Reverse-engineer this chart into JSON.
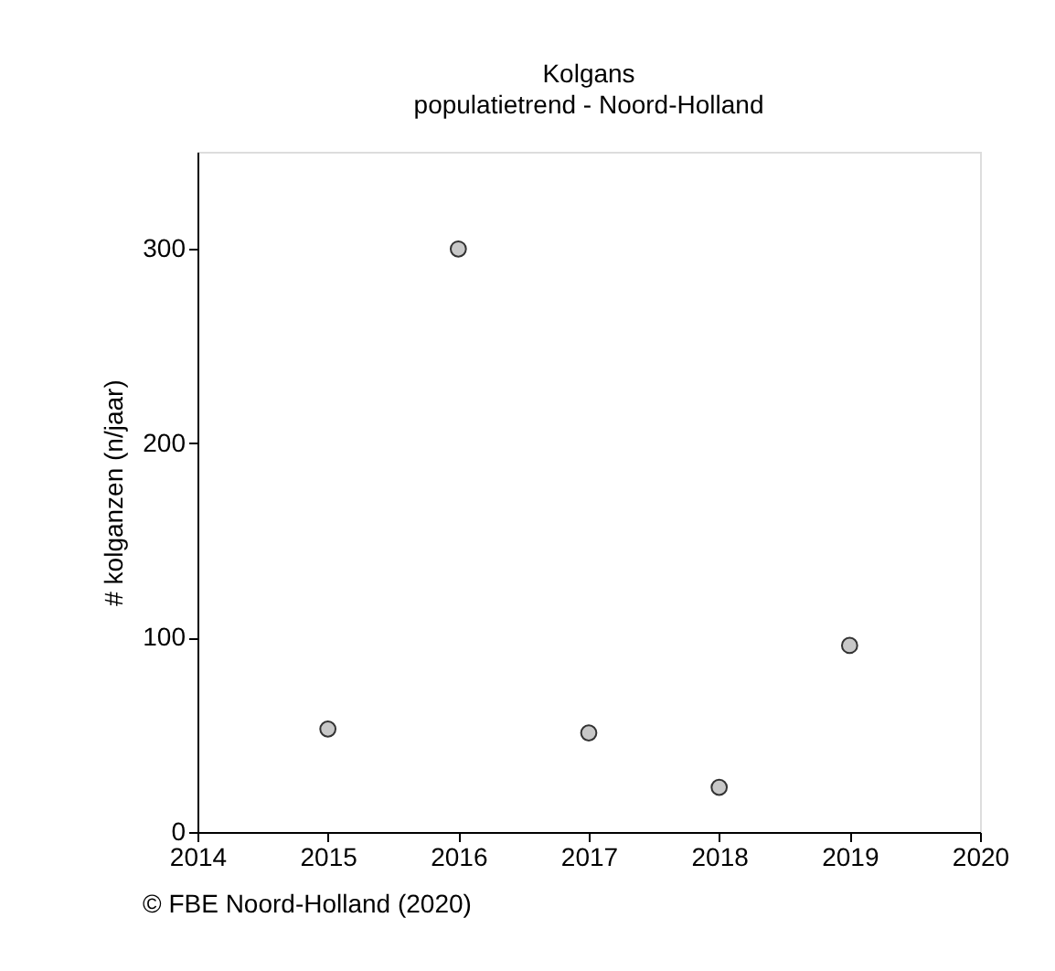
{
  "chart_data": {
    "type": "scatter",
    "title": "Kolgans",
    "subtitle": "populatietrend - Noord-Holland",
    "ylabel": "# kolganzen (n/jaar)",
    "x": [
      2015,
      2016,
      2017,
      2018,
      2019
    ],
    "series": [
      {
        "color": "#c8c8c8",
        "values": [
          53,
          300,
          51,
          23,
          96
        ]
      }
    ],
    "xlim": [
      2014,
      2020
    ],
    "xticks": [
      2014,
      2015,
      2016,
      2017,
      2018,
      2019,
      2020
    ],
    "ylim": [
      0,
      350
    ],
    "yticks": [
      0,
      100,
      200,
      300
    ],
    "grid": false,
    "legend": false,
    "marker": "circle",
    "annotations": [
      "© FBE Noord-Holland (2020)"
    ]
  }
}
